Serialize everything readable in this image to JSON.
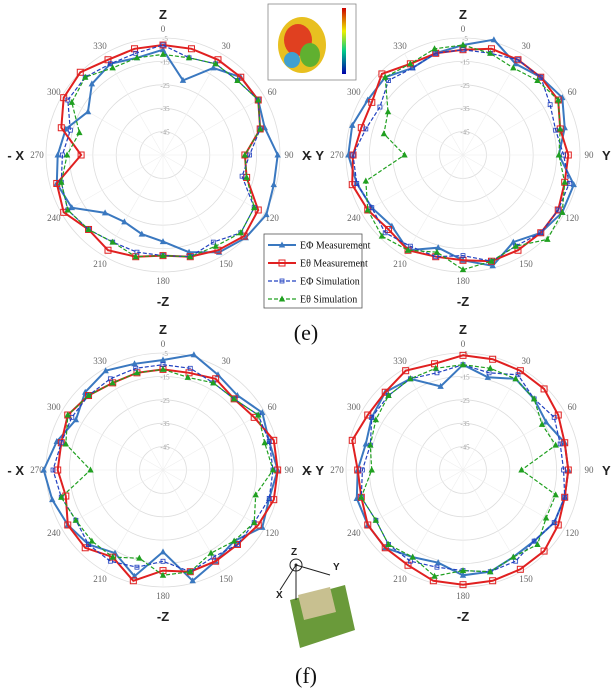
{
  "chart_data": [
    {
      "type": "polar",
      "theta": [
        0,
        15,
        30,
        45,
        60,
        75,
        90,
        105,
        120,
        135,
        150,
        165,
        180,
        195,
        210,
        225,
        240,
        255,
        270,
        285,
        300,
        315,
        330,
        345
      ],
      "rlim": [
        -55,
        -5
      ],
      "rticks": [
        -5,
        -15,
        -25,
        -35,
        -45
      ],
      "thetaticks": [
        0,
        30,
        60,
        90,
        120,
        150,
        180,
        210,
        240,
        270,
        300,
        330
      ],
      "axis_labels": {
        "top": "Z",
        "bottom": "-Z",
        "left": "- X",
        "right": "X"
      },
      "series": [
        {
          "name": "EΦ Measurement",
          "color": "#3a78c0",
          "dash": false,
          "marker": "triangle",
          "values": [
            -10,
            -22,
            -12,
            -8,
            -8,
            -10,
            -6,
            -6,
            -4,
            -5,
            -7,
            -12,
            -18,
            -20,
            -22,
            -20,
            -10,
            -8,
            -10,
            -12,
            -18,
            -12,
            -10,
            -12
          ]
        },
        {
          "name": "Eθ Measurement",
          "color": "#e02020",
          "dash": false,
          "marker": "square",
          "values": [
            -8,
            -8,
            -8,
            -8,
            -8,
            -12,
            -20,
            -18,
            -8,
            -6,
            -8,
            -10,
            -12,
            -10,
            -8,
            -10,
            -6,
            -8,
            -20,
            -10,
            -6,
            -5,
            -8,
            -8
          ]
        },
        {
          "name": "EΦ Simulation",
          "color": "#2040c0",
          "dash": true,
          "marker": "smallsquare",
          "values": [
            -8,
            -12,
            -10,
            -10,
            -8,
            -12,
            -18,
            -20,
            -10,
            -8,
            -12,
            -10,
            -12,
            -12,
            -12,
            -10,
            -8,
            -10,
            -12,
            -14,
            -8,
            -8,
            -10,
            -10
          ]
        },
        {
          "name": "Eθ Simulation",
          "color": "#20a020",
          "dash": true,
          "marker": "triangle",
          "values": [
            -12,
            -12,
            -10,
            -10,
            -8,
            -12,
            -20,
            -18,
            -10,
            -8,
            -10,
            -10,
            -12,
            -10,
            -12,
            -10,
            -8,
            -10,
            -14,
            -18,
            -10,
            -8,
            -12,
            -12
          ]
        }
      ]
    },
    {
      "type": "polar",
      "theta": [
        0,
        15,
        30,
        45,
        60,
        75,
        90,
        105,
        120,
        135,
        150,
        165,
        180,
        195,
        210,
        225,
        240,
        255,
        270,
        285,
        300,
        315,
        330,
        345
      ],
      "rlim": [
        -55,
        -5
      ],
      "rticks": [
        -5,
        -15,
        -25,
        -35,
        -45
      ],
      "thetaticks": [
        0,
        30,
        60,
        90,
        120,
        150,
        180,
        210,
        240,
        270,
        300,
        330
      ],
      "axis_labels": {
        "top": "Z",
        "bottom": "-Z",
        "left": "- Y",
        "right": "Y"
      },
      "series": [
        {
          "name": "EΦ Measurement",
          "color": "#3a78c0",
          "dash": false,
          "marker": "triangle",
          "values": [
            -8,
            -4,
            -10,
            -8,
            -6,
            -10,
            -14,
            -6,
            -6,
            -8,
            -12,
            -6,
            -10,
            -14,
            -8,
            -12,
            -10,
            -8,
            -6,
            -6,
            -8,
            -8,
            -12,
            -10
          ]
        },
        {
          "name": "Eθ Measurement",
          "color": "#e02020",
          "dash": false,
          "marker": "square",
          "values": [
            -10,
            -8,
            -8,
            -8,
            -8,
            -12,
            -10,
            -10,
            -8,
            -8,
            -8,
            -8,
            -10,
            -10,
            -8,
            -10,
            -8,
            -6,
            -8,
            -10,
            -10,
            -6,
            -10,
            -10
          ]
        },
        {
          "name": "EΦ Simulation",
          "color": "#2040c0",
          "dash": true,
          "marker": "smallsquare",
          "values": [
            -10,
            -10,
            -8,
            -8,
            -12,
            -14,
            -12,
            -8,
            -8,
            -8,
            -10,
            -8,
            -12,
            -10,
            -10,
            -8,
            -10,
            -8,
            -8,
            -12,
            -14,
            -10,
            -12,
            -10
          ]
        },
        {
          "name": "Eθ Simulation",
          "color": "#20a020",
          "dash": true,
          "marker": "triangle",
          "values": [
            -8,
            -10,
            -12,
            -10,
            -8,
            -12,
            -14,
            -10,
            -6,
            -4,
            -10,
            -8,
            -6,
            -12,
            -8,
            -6,
            -8,
            -12,
            -30,
            -20,
            -18,
            -8,
            -10,
            -8
          ]
        }
      ]
    },
    {
      "type": "polar",
      "theta": [
        0,
        15,
        30,
        45,
        60,
        75,
        90,
        105,
        120,
        135,
        150,
        165,
        180,
        195,
        210,
        225,
        240,
        255,
        270,
        285,
        300,
        315,
        330,
        345
      ],
      "rlim": [
        -55,
        -5
      ],
      "rticks": [
        -5,
        -15,
        -25,
        -35,
        -45
      ],
      "thetaticks": [
        0,
        30,
        60,
        90,
        120,
        150,
        180,
        210,
        240,
        270,
        300,
        330
      ],
      "axis_labels": {
        "top": "Z",
        "bottom": "-Z",
        "left": "- X",
        "right": "X"
      },
      "series": [
        {
          "name": "EΦ Measurement",
          "color": "#3a78c0",
          "dash": false,
          "marker": "triangle",
          "values": [
            -8,
            -4,
            -8,
            -10,
            -6,
            -8,
            -6,
            -8,
            -6,
            -12,
            -10,
            -6,
            -20,
            -8,
            -14,
            -10,
            -8,
            -6,
            -4,
            -8,
            -12,
            -8,
            -6,
            -8
          ]
        },
        {
          "name": "Eθ Measurement",
          "color": "#e02020",
          "dash": false,
          "marker": "square",
          "values": [
            -12,
            -12,
            -10,
            -12,
            -10,
            -6,
            -6,
            -6,
            -8,
            -10,
            -10,
            -10,
            -12,
            -6,
            -12,
            -8,
            -8,
            -12,
            -10,
            -10,
            -8,
            -10,
            -12,
            -12
          ]
        },
        {
          "name": "EΦ Simulation",
          "color": "#2040c0",
          "dash": true,
          "marker": "smallsquare",
          "values": [
            -10,
            -10,
            -12,
            -12,
            -8,
            -8,
            -8,
            -8,
            -10,
            -10,
            -12,
            -10,
            -16,
            -12,
            -10,
            -10,
            -12,
            -10,
            -8,
            -10,
            -10,
            -10,
            -10,
            -10
          ]
        },
        {
          "name": "Eθ Simulation",
          "color": "#20a020",
          "dash": true,
          "marker": "triangle",
          "values": [
            -12,
            -14,
            -12,
            -12,
            -8,
            -10,
            -8,
            -14,
            -10,
            -12,
            -14,
            -10,
            -10,
            -16,
            -12,
            -12,
            -12,
            -10,
            -24,
            -12,
            -8,
            -10,
            -12,
            -12
          ]
        }
      ]
    },
    {
      "type": "polar",
      "theta": [
        0,
        15,
        30,
        45,
        60,
        75,
        90,
        105,
        120,
        135,
        150,
        165,
        180,
        195,
        210,
        225,
        240,
        255,
        270,
        285,
        300,
        315,
        330,
        345
      ],
      "rlim": [
        -55,
        -5
      ],
      "rticks": [
        -5,
        -15,
        -25,
        -35,
        -45
      ],
      "thetaticks": [
        0,
        30,
        60,
        90,
        120,
        150,
        180,
        210,
        240,
        270,
        300,
        330
      ],
      "axis_labels": {
        "top": "Z",
        "bottom": "-Z",
        "left": "- Y",
        "right": "Y"
      },
      "series": [
        {
          "name": "EΦ Measurement",
          "color": "#3a78c0",
          "dash": false,
          "marker": "triangle",
          "values": [
            -10,
            -14,
            -10,
            -12,
            -14,
            -10,
            -10,
            -10,
            -10,
            -12,
            -12,
            -10,
            -10,
            -14,
            -12,
            -8,
            -8,
            -8,
            -10,
            -12,
            -10,
            -8,
            -10,
            -18
          ]
        },
        {
          "name": "Eθ Measurement",
          "color": "#e02020",
          "dash": false,
          "marker": "square",
          "values": [
            -6,
            -6,
            -6,
            -6,
            -8,
            -10,
            -10,
            -10,
            -8,
            -6,
            -6,
            -6,
            -6,
            -6,
            -8,
            -8,
            -8,
            -10,
            -10,
            -6,
            -8,
            -8,
            -6,
            -8
          ]
        },
        {
          "name": "EΦ Simulation",
          "color": "#2040c0",
          "dash": true,
          "marker": "smallsquare",
          "values": [
            -10,
            -12,
            -8,
            -12,
            -10,
            -12,
            -12,
            -10,
            -10,
            -12,
            -10,
            -10,
            -12,
            -12,
            -10,
            -10,
            -12,
            -10,
            -12,
            -14,
            -10,
            -10,
            -10,
            -12
          ]
        },
        {
          "name": "Eθ Simulation",
          "color": "#20a020",
          "dash": true,
          "marker": "triangle",
          "values": [
            -10,
            -10,
            -10,
            -12,
            -16,
            -14,
            -30,
            -14,
            -14,
            -10,
            -12,
            -10,
            -12,
            -8,
            -12,
            -10,
            -12,
            -10,
            -16,
            -14,
            -12,
            -10,
            -10,
            -10
          ]
        }
      ]
    }
  ],
  "captions": [
    "(e)",
    "(f)"
  ],
  "inset_axes": [
    "Z",
    "Y",
    "X"
  ]
}
